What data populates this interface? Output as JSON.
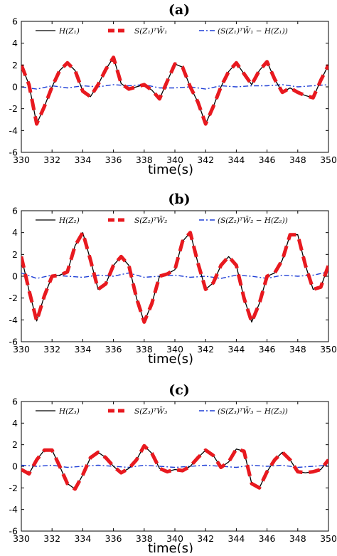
{
  "chart_data": [
    {
      "type": "line",
      "title": "(a)",
      "xlabel": "time(s)",
      "ylabel": "",
      "xlim": [
        330,
        350
      ],
      "ylim": [
        -6,
        6
      ],
      "xticks": [
        330,
        332,
        334,
        336,
        338,
        340,
        342,
        344,
        346,
        348,
        350
      ],
      "yticks": [
        6,
        4,
        2,
        0,
        -2,
        -4,
        -6
      ],
      "xtick_labels": [
        "330",
        "332",
        "334",
        "336",
        "338",
        "340",
        "342",
        "344",
        "346",
        "348",
        "350"
      ],
      "ytick_labels": [
        "6",
        "4",
        "2",
        "0",
        "-2",
        "-4",
        "-6"
      ],
      "grid": false,
      "legend_position": "top",
      "series": [
        {
          "name": "H(Z₁)",
          "style": "solid",
          "color": "#000000",
          "x": [
            330,
            330.5,
            331,
            331.5,
            332,
            332.5,
            333,
            333.5,
            334,
            334.5,
            335,
            335.5,
            336,
            336.5,
            337,
            337.5,
            338,
            338.5,
            339,
            339.5,
            340,
            340.5,
            341,
            341.5,
            342,
            342.5,
            343,
            343.5,
            344,
            344.5,
            345,
            345.5,
            346,
            346.5,
            347,
            347.5,
            348,
            348.5,
            349,
            349.5,
            350
          ],
          "y": [
            2.0,
            0.2,
            -3.4,
            -1.8,
            0.0,
            1.5,
            2.2,
            1.5,
            -0.4,
            -0.9,
            0.2,
            1.6,
            2.7,
            0.3,
            -0.2,
            0.0,
            0.2,
            -0.3,
            -1.1,
            0.5,
            2.1,
            1.8,
            0.0,
            -1.4,
            -3.4,
            -1.8,
            0.0,
            1.4,
            2.2,
            1.2,
            0.2,
            1.5,
            2.3,
            0.7,
            -0.5,
            -0.1,
            -0.5,
            -0.8,
            -1.0,
            0.6,
            2.0
          ]
        },
        {
          "name": "S(Z₁)ᵀW̄₁",
          "style": "dashed",
          "color": "#e8191f",
          "x": [
            330,
            330.5,
            331,
            331.5,
            332,
            332.5,
            333,
            333.5,
            334,
            334.5,
            335,
            335.5,
            336,
            336.5,
            337,
            337.5,
            338,
            338.5,
            339,
            339.5,
            340,
            340.5,
            341,
            341.5,
            342,
            342.5,
            343,
            343.5,
            344,
            344.5,
            345,
            345.5,
            346,
            346.5,
            347,
            347.5,
            348,
            348.5,
            349,
            349.5,
            350
          ],
          "y": [
            2.0,
            0.2,
            -3.4,
            -1.8,
            0.0,
            1.5,
            2.2,
            1.5,
            -0.4,
            -0.9,
            0.2,
            1.6,
            2.7,
            0.3,
            -0.2,
            0.0,
            0.2,
            -0.3,
            -1.1,
            0.5,
            2.1,
            1.8,
            0.0,
            -1.4,
            -3.4,
            -1.8,
            0.0,
            1.4,
            2.2,
            1.2,
            0.2,
            1.5,
            2.3,
            0.7,
            -0.5,
            -0.1,
            -0.5,
            -0.8,
            -1.0,
            0.6,
            2.0
          ]
        },
        {
          "name": "(S(Z₁)ᵀW̄₁ − H(Z₁))",
          "style": "dashdot",
          "color": "#1f3fd6",
          "x": [
            330,
            331,
            332,
            333,
            334,
            335,
            336,
            337,
            338,
            339,
            340,
            341,
            342,
            343,
            344,
            345,
            346,
            347,
            348,
            349,
            350
          ],
          "y": [
            0.0,
            -0.2,
            0.1,
            -0.1,
            0.1,
            0.0,
            0.2,
            0.1,
            0.2,
            -0.1,
            -0.1,
            0.0,
            -0.2,
            0.1,
            0.0,
            0.1,
            0.1,
            0.2,
            0.0,
            0.1,
            0.2
          ]
        }
      ]
    },
    {
      "type": "line",
      "title": "(b)",
      "xlabel": "time(s)",
      "ylabel": "",
      "xlim": [
        330,
        350
      ],
      "ylim": [
        -6,
        6
      ],
      "xticks": [
        330,
        332,
        334,
        336,
        338,
        340,
        342,
        344,
        346,
        348,
        350
      ],
      "yticks": [
        6,
        4,
        2,
        0,
        -2,
        -4,
        -6
      ],
      "xtick_labels": [
        "330",
        "332",
        "334",
        "336",
        "338",
        "340",
        "342",
        "344",
        "346",
        "348",
        "350"
      ],
      "ytick_labels": [
        "6",
        "4",
        "2",
        "0",
        "-2",
        "-4",
        "-6"
      ],
      "grid": false,
      "legend_position": "top",
      "series": [
        {
          "name": "H(Z₂)",
          "style": "solid",
          "color": "#000000",
          "x": [
            330,
            330.5,
            331,
            331.5,
            332,
            332.5,
            333,
            333.5,
            334,
            334.5,
            335,
            335.5,
            336,
            336.5,
            337,
            337.5,
            338,
            338.5,
            339,
            339.5,
            340,
            340.5,
            341,
            341.5,
            342,
            342.5,
            343,
            343.5,
            344,
            344.5,
            345,
            345.5,
            346,
            346.5,
            347,
            347.5,
            348,
            348.5,
            349,
            349.5,
            350
          ],
          "y": [
            1.8,
            -1.3,
            -4.1,
            -1.8,
            0.0,
            0.1,
            0.4,
            2.8,
            4.0,
            1.5,
            -1.2,
            -0.7,
            1.0,
            1.8,
            1.0,
            -2.0,
            -4.2,
            -2.5,
            0.0,
            0.2,
            0.6,
            3.2,
            4.0,
            1.2,
            -1.2,
            -0.6,
            1.0,
            1.8,
            1.0,
            -2.0,
            -4.2,
            -2.5,
            0.0,
            0.3,
            1.5,
            3.8,
            3.8,
            1.0,
            -1.2,
            -1.0,
            1.0
          ]
        },
        {
          "name": "S(Z₂)ᵀW̄₂",
          "style": "dashed",
          "color": "#e8191f",
          "x": [
            330,
            330.5,
            331,
            331.5,
            332,
            332.5,
            333,
            333.5,
            334,
            334.5,
            335,
            335.5,
            336,
            336.5,
            337,
            337.5,
            338,
            338.5,
            339,
            339.5,
            340,
            340.5,
            341,
            341.5,
            342,
            342.5,
            343,
            343.5,
            344,
            344.5,
            345,
            345.5,
            346,
            346.5,
            347,
            347.5,
            348,
            348.5,
            349,
            349.5,
            350
          ],
          "y": [
            1.8,
            -1.3,
            -4.1,
            -1.8,
            0.0,
            0.1,
            0.4,
            2.8,
            4.0,
            1.5,
            -1.2,
            -0.7,
            1.0,
            1.8,
            1.0,
            -2.0,
            -4.2,
            -2.5,
            0.0,
            0.2,
            0.6,
            3.2,
            4.0,
            1.2,
            -1.2,
            -0.6,
            1.0,
            1.8,
            1.0,
            -2.0,
            -4.2,
            -2.5,
            0.0,
            0.3,
            1.5,
            3.8,
            3.8,
            1.0,
            -1.2,
            -1.0,
            1.0
          ]
        },
        {
          "name": "(S(Z₂)ᵀW̄₂ − H(Z₂))",
          "style": "dashdot",
          "color": "#1f3fd6",
          "x": [
            330,
            331,
            332,
            333,
            334,
            335,
            336,
            337,
            338,
            339,
            340,
            341,
            342,
            343,
            344,
            345,
            346,
            347,
            348,
            349,
            350
          ],
          "y": [
            0.3,
            -0.2,
            0.1,
            0.0,
            -0.1,
            0.1,
            0.0,
            0.3,
            -0.1,
            0.0,
            0.1,
            -0.1,
            0.0,
            -0.2,
            0.1,
            0.0,
            -0.2,
            0.1,
            0.0,
            0.1,
            0.4
          ]
        }
      ]
    },
    {
      "type": "line",
      "title": "(c)",
      "xlabel": "time(s)",
      "ylabel": "",
      "xlim": [
        330,
        350
      ],
      "ylim": [
        -6,
        6
      ],
      "xticks": [
        330,
        332,
        334,
        336,
        338,
        340,
        342,
        344,
        346,
        348,
        350
      ],
      "yticks": [
        6,
        4,
        2,
        0,
        -2,
        -4,
        -6
      ],
      "xtick_labels": [
        "330",
        "332",
        "334",
        "336",
        "338",
        "340",
        "342",
        "344",
        "346",
        "348",
        "350"
      ],
      "ytick_labels": [
        "6",
        "4",
        "2",
        "0",
        "-2",
        "-4",
        "-6"
      ],
      "grid": false,
      "legend_position": "top",
      "series": [
        {
          "name": "H(Z₃)",
          "style": "solid",
          "color": "#000000",
          "x": [
            330,
            330.5,
            331,
            331.5,
            332,
            332.5,
            333,
            333.5,
            334,
            334.5,
            335,
            335.5,
            336,
            336.5,
            337,
            337.5,
            338,
            338.5,
            339,
            339.5,
            340,
            340.5,
            341,
            341.5,
            342,
            342.5,
            343,
            343.5,
            344,
            344.5,
            345,
            345.5,
            346,
            346.5,
            347,
            347.5,
            348,
            348.5,
            349,
            349.5,
            350
          ],
          "y": [
            -0.3,
            -0.7,
            0.6,
            1.5,
            1.5,
            0.0,
            -1.6,
            -2.1,
            -0.8,
            0.8,
            1.3,
            0.8,
            0.0,
            -0.6,
            -0.2,
            0.6,
            1.9,
            1.2,
            -0.2,
            -0.5,
            -0.3,
            -0.4,
            0.0,
            0.8,
            1.5,
            1.0,
            -0.1,
            0.4,
            1.6,
            1.4,
            -1.6,
            -2.0,
            -0.5,
            0.6,
            1.3,
            0.6,
            -0.5,
            -0.6,
            -0.5,
            -0.3,
            0.6
          ]
        },
        {
          "name": "S(Z₃)ᵀW̄₃",
          "style": "dashed",
          "color": "#e8191f",
          "x": [
            330,
            330.5,
            331,
            331.5,
            332,
            332.5,
            333,
            333.5,
            334,
            334.5,
            335,
            335.5,
            336,
            336.5,
            337,
            337.5,
            338,
            338.5,
            339,
            339.5,
            340,
            340.5,
            341,
            341.5,
            342,
            342.5,
            343,
            343.5,
            344,
            344.5,
            345,
            345.5,
            346,
            346.5,
            347,
            347.5,
            348,
            348.5,
            349,
            349.5,
            350
          ],
          "y": [
            -0.3,
            -0.7,
            0.6,
            1.5,
            1.5,
            0.0,
            -1.6,
            -2.1,
            -0.8,
            0.8,
            1.3,
            0.8,
            0.0,
            -0.6,
            -0.2,
            0.6,
            1.9,
            1.2,
            -0.2,
            -0.5,
            -0.3,
            -0.4,
            0.0,
            0.8,
            1.5,
            1.0,
            -0.1,
            0.4,
            1.6,
            1.4,
            -1.6,
            -2.0,
            -0.5,
            0.6,
            1.3,
            0.6,
            -0.5,
            -0.6,
            -0.5,
            -0.3,
            0.6
          ]
        },
        {
          "name": "(S(Z₃)ᵀW̄₃ − H(Z₃))",
          "style": "dashdot",
          "color": "#1f3fd6",
          "x": [
            330,
            331,
            332,
            333,
            334,
            335,
            336,
            337,
            338,
            339,
            340,
            341,
            342,
            343,
            344,
            345,
            346,
            347,
            348,
            349,
            350
          ],
          "y": [
            0.1,
            0.0,
            0.1,
            -0.1,
            0.0,
            0.1,
            0.0,
            -0.1,
            0.1,
            0.0,
            -0.1,
            0.0,
            0.1,
            0.0,
            -0.1,
            0.1,
            0.0,
            0.1,
            -0.1,
            0.0,
            0.1
          ]
        }
      ]
    }
  ]
}
